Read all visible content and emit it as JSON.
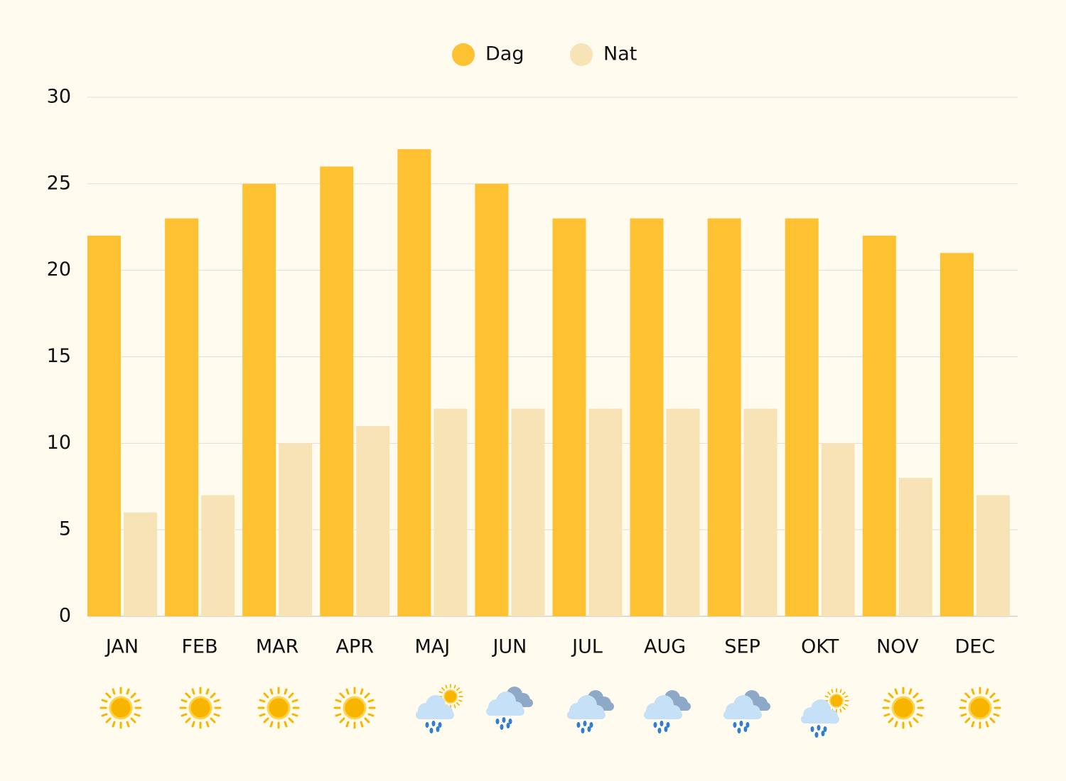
{
  "chart_data": {
    "type": "bar",
    "categories": [
      "JAN",
      "FEB",
      "MAR",
      "APR",
      "MAJ",
      "JUN",
      "JUL",
      "AUG",
      "SEP",
      "OKT",
      "NOV",
      "DEC"
    ],
    "series": [
      {
        "name": "Dag",
        "color": "#fdc132",
        "values": [
          22,
          23,
          25,
          26,
          27,
          25,
          23,
          23,
          23,
          23,
          22,
          21
        ]
      },
      {
        "name": "Nat",
        "color": "#f8e3b6",
        "values": [
          6,
          7,
          10,
          11,
          12,
          12,
          12,
          12,
          12,
          10,
          8,
          7
        ]
      }
    ],
    "ylim": [
      0,
      30
    ],
    "yticks": [
      0,
      5,
      10,
      15,
      20,
      25,
      30
    ],
    "grid": true,
    "legend": "top"
  }
}
